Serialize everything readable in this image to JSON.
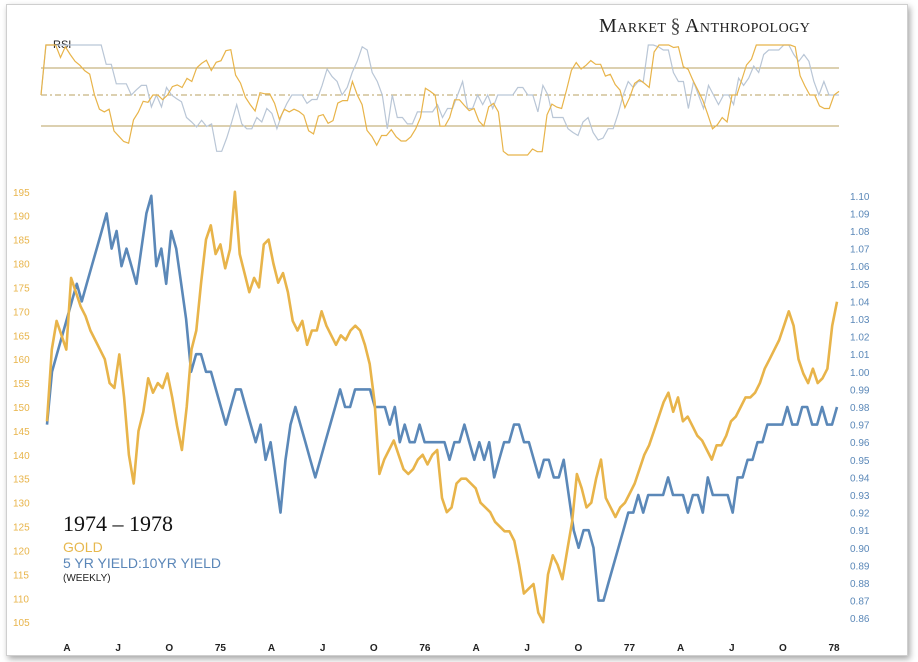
{
  "brand": {
    "text": "Market",
    "text2": "Anthropology",
    "icon": "dna-icon"
  },
  "rsi": {
    "label": "RSI"
  },
  "legend": {
    "period": "1974 – 1978",
    "gold": "GOLD",
    "ratio": "5 YR YIELD:10YR YIELD",
    "freq": "(WEEKLY)"
  },
  "colors": {
    "gold": "#e8b44a",
    "blue": "#5b88b8",
    "gold_fill": "#d8bf6a",
    "rsi_gold_line": "#b8a060"
  },
  "chart_data": {
    "type": "line",
    "title": "",
    "x_ticks": [
      "A",
      "J",
      "O",
      "75",
      "A",
      "J",
      "O",
      "76",
      "A",
      "J",
      "O",
      "77",
      "A",
      "J",
      "O",
      "78"
    ],
    "left_axis": {
      "ticks": [
        105,
        110,
        115,
        120,
        125,
        130,
        135,
        140,
        145,
        150,
        155,
        160,
        165,
        170,
        175,
        180,
        185,
        190,
        195
      ],
      "range": [
        104,
        196
      ]
    },
    "right_axis": {
      "ticks": [
        "0.86",
        "0.87",
        "0.88",
        "0.89",
        "0.90",
        "0.91",
        "0.92",
        "0.93",
        "0.94",
        "0.95",
        "0.96",
        "0.97",
        "0.98",
        "0.99",
        "1.00",
        "1.01",
        "1.02",
        "1.03",
        "1.04",
        "1.05",
        "1.06",
        "1.07",
        "1.08",
        "1.09",
        "1.10"
      ],
      "range": [
        0.855,
        1.105
      ]
    },
    "series": [
      {
        "name": "GOLD",
        "axis": "left",
        "values": [
          147,
          162,
          168,
          165,
          162,
          177,
          174,
          171,
          169,
          166,
          164,
          162,
          160,
          155,
          154,
          161,
          152,
          140,
          134,
          145,
          149,
          156,
          153,
          155,
          154,
          157,
          152,
          146,
          141,
          150,
          162,
          166,
          176,
          185,
          188,
          182,
          184,
          179,
          183,
          195,
          182,
          178,
          174,
          177,
          175,
          184,
          185,
          180,
          176,
          178,
          174,
          168,
          166,
          168,
          163,
          166,
          166,
          170,
          167,
          165,
          163,
          165,
          164,
          166,
          167,
          166,
          163,
          159,
          151,
          136,
          139,
          141,
          143,
          140,
          137,
          136,
          137,
          139,
          140,
          138,
          140,
          141,
          131,
          128,
          129,
          134,
          135,
          135,
          134,
          133,
          130,
          129,
          128,
          126,
          125,
          124,
          124,
          122,
          117,
          111,
          112,
          113,
          107,
          105,
          115,
          119,
          117,
          114,
          120,
          126,
          136,
          133,
          129,
          130,
          135,
          139,
          131,
          129,
          127,
          129,
          130,
          132,
          134,
          137,
          140,
          142,
          145,
          148,
          151,
          153,
          149,
          152,
          147,
          148,
          146,
          144,
          143,
          141,
          139,
          142,
          142,
          144,
          147,
          148,
          150,
          152,
          152,
          153,
          155,
          158,
          160,
          162,
          164,
          167,
          170,
          167,
          160,
          157,
          155,
          158,
          155,
          156,
          158,
          167,
          172
        ]
      },
      {
        "name": "5 YR YIELD:10YR YIELD",
        "axis": "right",
        "values": [
          0.97,
          1.0,
          1.01,
          1.02,
          1.03,
          1.04,
          1.05,
          1.04,
          1.05,
          1.06,
          1.07,
          1.08,
          1.09,
          1.07,
          1.08,
          1.06,
          1.07,
          1.06,
          1.05,
          1.07,
          1.09,
          1.1,
          1.06,
          1.07,
          1.05,
          1.08,
          1.07,
          1.05,
          1.03,
          1.0,
          1.01,
          1.01,
          1.0,
          1.0,
          0.99,
          0.98,
          0.97,
          0.98,
          0.99,
          0.99,
          0.98,
          0.97,
          0.96,
          0.97,
          0.95,
          0.96,
          0.94,
          0.92,
          0.95,
          0.97,
          0.98,
          0.97,
          0.96,
          0.95,
          0.94,
          0.95,
          0.96,
          0.97,
          0.98,
          0.99,
          0.98,
          0.98,
          0.99,
          0.99,
          0.99,
          0.99,
          0.98,
          0.98,
          0.98,
          0.97,
          0.98,
          0.96,
          0.97,
          0.96,
          0.96,
          0.97,
          0.96,
          0.96,
          0.96,
          0.96,
          0.96,
          0.95,
          0.96,
          0.96,
          0.97,
          0.96,
          0.95,
          0.96,
          0.95,
          0.96,
          0.94,
          0.95,
          0.96,
          0.96,
          0.97,
          0.97,
          0.96,
          0.96,
          0.95,
          0.94,
          0.95,
          0.95,
          0.94,
          0.94,
          0.95,
          0.93,
          0.91,
          0.9,
          0.91,
          0.91,
          0.9,
          0.87,
          0.87,
          0.88,
          0.89,
          0.9,
          0.91,
          0.92,
          0.92,
          0.93,
          0.92,
          0.93,
          0.93,
          0.93,
          0.93,
          0.94,
          0.93,
          0.93,
          0.93,
          0.92,
          0.93,
          0.93,
          0.92,
          0.94,
          0.93,
          0.93,
          0.93,
          0.93,
          0.92,
          0.94,
          0.94,
          0.95,
          0.95,
          0.96,
          0.96,
          0.97,
          0.97,
          0.97,
          0.97,
          0.98,
          0.97,
          0.97,
          0.98,
          0.98,
          0.97,
          0.97,
          0.98,
          0.97,
          0.97,
          0.98
        ]
      }
    ],
    "rsi_panel": {
      "label": "RSI",
      "bands": [
        30,
        50,
        70
      ],
      "series": [
        "GOLD RSI",
        "5 YR YIELD:10YR YIELD RSI"
      ]
    }
  }
}
